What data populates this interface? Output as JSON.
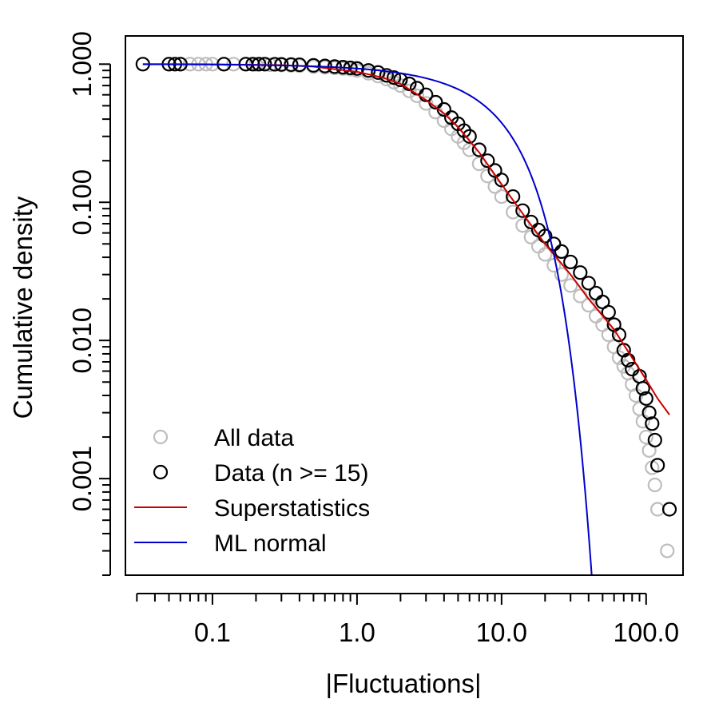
{
  "chart_data": {
    "type": "scatter",
    "title": "",
    "xlabel": "|Fluctuations|",
    "ylabel": "Cumulative density",
    "x_scale": "log",
    "y_scale": "log",
    "xlim": [
      0.025,
      180
    ],
    "ylim": [
      0.0002,
      1.6
    ],
    "x_tick_labels": [
      {
        "value": 0.1,
        "label": "0.1"
      },
      {
        "value": 1,
        "label": "1.0"
      },
      {
        "value": 10,
        "label": "10.0"
      },
      {
        "value": 100,
        "label": "100.0"
      }
    ],
    "y_tick_labels": [
      {
        "value": 0.001,
        "label": "0.001"
      },
      {
        "value": 0.01,
        "label": "0.010"
      },
      {
        "value": 0.1,
        "label": "0.100"
      },
      {
        "value": 1,
        "label": "1.000"
      }
    ],
    "legend_position": "bottom-left",
    "legend": [
      {
        "label": "All data",
        "kind": "circle",
        "color": "#bdbdbd"
      },
      {
        "label": "Data (n >= 15)",
        "kind": "circle",
        "color": "#000000"
      },
      {
        "label": "Superstatistics",
        "kind": "line",
        "color": "#cc0000"
      },
      {
        "label": "ML normal",
        "kind": "line",
        "color": "#0000cc"
      }
    ],
    "series": [
      {
        "name": "All data",
        "kind": "points",
        "color": "#bdbdbd",
        "points": [
          [
            0.05,
            1.0
          ],
          [
            0.06,
            1.0
          ],
          [
            0.07,
            1.0
          ],
          [
            0.08,
            1.0
          ],
          [
            0.09,
            1.0
          ],
          [
            0.1,
            1.0
          ],
          [
            0.12,
            1.0
          ],
          [
            0.14,
            1.0
          ],
          [
            0.17,
            1.0
          ],
          [
            0.2,
            0.995
          ],
          [
            0.25,
            0.99
          ],
          [
            0.3,
            0.985
          ],
          [
            0.35,
            0.98
          ],
          [
            0.4,
            0.975
          ],
          [
            0.5,
            0.96
          ],
          [
            0.6,
            0.95
          ],
          [
            0.7,
            0.94
          ],
          [
            0.8,
            0.93
          ],
          [
            0.9,
            0.92
          ],
          [
            1.0,
            0.9
          ],
          [
            1.2,
            0.86
          ],
          [
            1.4,
            0.82
          ],
          [
            1.6,
            0.78
          ],
          [
            1.8,
            0.74
          ],
          [
            2.0,
            0.7
          ],
          [
            2.3,
            0.64
          ],
          [
            2.6,
            0.59
          ],
          [
            3.0,
            0.52
          ],
          [
            3.5,
            0.45
          ],
          [
            4.0,
            0.39
          ],
          [
            4.5,
            0.34
          ],
          [
            5.0,
            0.3
          ],
          [
            5.5,
            0.27
          ],
          [
            6.0,
            0.24
          ],
          [
            7.0,
            0.19
          ],
          [
            8.0,
            0.155
          ],
          [
            9.0,
            0.13
          ],
          [
            10.0,
            0.11
          ],
          [
            12.0,
            0.085
          ],
          [
            14.0,
            0.068
          ],
          [
            16.0,
            0.056
          ],
          [
            18.0,
            0.048
          ],
          [
            20.0,
            0.042
          ],
          [
            23.0,
            0.035
          ],
          [
            26.0,
            0.03
          ],
          [
            30.0,
            0.025
          ],
          [
            35.0,
            0.021
          ],
          [
            40.0,
            0.018
          ],
          [
            45.0,
            0.015
          ],
          [
            50.0,
            0.013
          ],
          [
            55.0,
            0.011
          ],
          [
            60.0,
            0.009
          ],
          [
            65.0,
            0.0075
          ],
          [
            70.0,
            0.0065
          ],
          [
            75.0,
            0.0058
          ],
          [
            80.0,
            0.0048
          ],
          [
            85.0,
            0.004
          ],
          [
            90.0,
            0.0032
          ],
          [
            95.0,
            0.0026
          ],
          [
            100.0,
            0.002
          ],
          [
            105.0,
            0.0016
          ],
          [
            110.0,
            0.0012
          ],
          [
            115.0,
            0.0009
          ],
          [
            120.0,
            0.0006
          ],
          [
            140.0,
            0.0003
          ]
        ]
      },
      {
        "name": "Data (n >= 15)",
        "kind": "points",
        "color": "#000000",
        "points": [
          [
            0.033,
            1.0
          ],
          [
            0.05,
            1.0
          ],
          [
            0.055,
            1.0
          ],
          [
            0.06,
            1.0
          ],
          [
            0.12,
            1.0
          ],
          [
            0.17,
            1.0
          ],
          [
            0.19,
            1.0
          ],
          [
            0.21,
            1.0
          ],
          [
            0.23,
            1.0
          ],
          [
            0.27,
            0.998
          ],
          [
            0.3,
            0.996
          ],
          [
            0.35,
            0.993
          ],
          [
            0.4,
            0.99
          ],
          [
            0.5,
            0.98
          ],
          [
            0.6,
            0.97
          ],
          [
            0.7,
            0.96
          ],
          [
            0.8,
            0.95
          ],
          [
            0.9,
            0.94
          ],
          [
            1.0,
            0.93
          ],
          [
            1.2,
            0.9
          ],
          [
            1.4,
            0.87
          ],
          [
            1.6,
            0.83
          ],
          [
            1.8,
            0.8
          ],
          [
            2.0,
            0.77
          ],
          [
            2.3,
            0.72
          ],
          [
            2.6,
            0.67
          ],
          [
            3.0,
            0.6
          ],
          [
            3.5,
            0.53
          ],
          [
            4.0,
            0.47
          ],
          [
            4.5,
            0.41
          ],
          [
            5.0,
            0.37
          ],
          [
            5.5,
            0.33
          ],
          [
            6.0,
            0.3
          ],
          [
            7.0,
            0.24
          ],
          [
            8.0,
            0.2
          ],
          [
            9.0,
            0.17
          ],
          [
            10.0,
            0.145
          ],
          [
            12.0,
            0.11
          ],
          [
            14.0,
            0.087
          ],
          [
            16.0,
            0.072
          ],
          [
            18.0,
            0.063
          ],
          [
            20.0,
            0.057
          ],
          [
            23.0,
            0.05
          ],
          [
            26.0,
            0.044
          ],
          [
            30.0,
            0.037
          ],
          [
            35.0,
            0.031
          ],
          [
            40.0,
            0.026
          ],
          [
            45.0,
            0.022
          ],
          [
            50.0,
            0.019
          ],
          [
            55.0,
            0.016
          ],
          [
            60.0,
            0.013
          ],
          [
            65.0,
            0.011
          ],
          [
            70.0,
            0.0085
          ],
          [
            75.0,
            0.0072
          ],
          [
            80.0,
            0.0062
          ],
          [
            90.0,
            0.0055
          ],
          [
            95.0,
            0.0045
          ],
          [
            100.0,
            0.0038
          ],
          [
            105.0,
            0.003
          ],
          [
            110.0,
            0.0025
          ],
          [
            115.0,
            0.0019
          ],
          [
            120.0,
            0.00125
          ],
          [
            145.0,
            0.0006
          ]
        ]
      },
      {
        "name": "Superstatistics",
        "kind": "line",
        "color": "#cc0000",
        "points": [
          [
            0.033,
            1.0
          ],
          [
            0.1,
            0.998
          ],
          [
            0.3,
            0.985
          ],
          [
            0.5,
            0.96
          ],
          [
            1.0,
            0.88
          ],
          [
            1.5,
            0.8
          ],
          [
            2.0,
            0.72
          ],
          [
            3.0,
            0.55
          ],
          [
            4.0,
            0.44
          ],
          [
            5.0,
            0.35
          ],
          [
            7.0,
            0.23
          ],
          [
            10.0,
            0.135
          ],
          [
            15.0,
            0.075
          ],
          [
            20.0,
            0.05
          ],
          [
            30.0,
            0.03
          ],
          [
            40.0,
            0.02
          ],
          [
            60.0,
            0.012
          ],
          [
            80.0,
            0.0075
          ],
          [
            100.0,
            0.0052
          ],
          [
            120.0,
            0.0038
          ],
          [
            145.0,
            0.0029
          ]
        ]
      },
      {
        "name": "ML normal",
        "kind": "line",
        "color": "#0000cc",
        "sigma": 11.3
      }
    ]
  }
}
